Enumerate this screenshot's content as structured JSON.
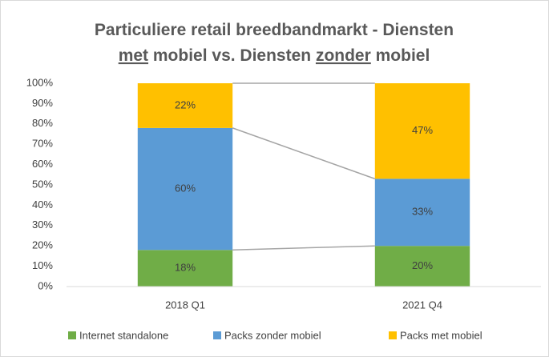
{
  "chart_data": {
    "type": "stacked_bar",
    "title": [
      [
        {
          "text": "Particuliere retail breedbandmarkt - Diensten"
        }
      ],
      [
        {
          "text": "met",
          "underline": true
        },
        {
          "text": " mobiel vs. Diensten "
        },
        {
          "text": "zonder",
          "underline": true
        },
        {
          "text": " mobiel"
        }
      ]
    ],
    "categories": [
      "2018 Q1",
      "2021 Q4"
    ],
    "series": [
      {
        "name": "Internet standalone",
        "color": "#70ad47",
        "values": [
          18,
          20
        ],
        "value_labels": [
          "18%",
          "20%"
        ]
      },
      {
        "name": "Packs zonder mobiel",
        "color": "#5b9bd5",
        "values": [
          60,
          33
        ],
        "value_labels": [
          "60%",
          "33%"
        ]
      },
      {
        "name": "Packs met mobiel",
        "color": "#ffc000",
        "values": [
          22,
          47
        ],
        "value_labels": [
          "22%",
          "47%"
        ]
      }
    ],
    "ylim": [
      0,
      100
    ],
    "yticks": [
      {
        "value": 0,
        "label": "0%"
      },
      {
        "value": 10,
        "label": "10%"
      },
      {
        "value": 20,
        "label": "20%"
      },
      {
        "value": 30,
        "label": "30%"
      },
      {
        "value": 40,
        "label": "40%"
      },
      {
        "value": 50,
        "label": "50%"
      },
      {
        "value": 60,
        "label": "60%"
      },
      {
        "value": 70,
        "label": "70%"
      },
      {
        "value": 80,
        "label": "80%"
      },
      {
        "value": 90,
        "label": "90%"
      },
      {
        "value": 100,
        "label": "100%"
      }
    ],
    "grid": false,
    "legend": "bottom"
  }
}
